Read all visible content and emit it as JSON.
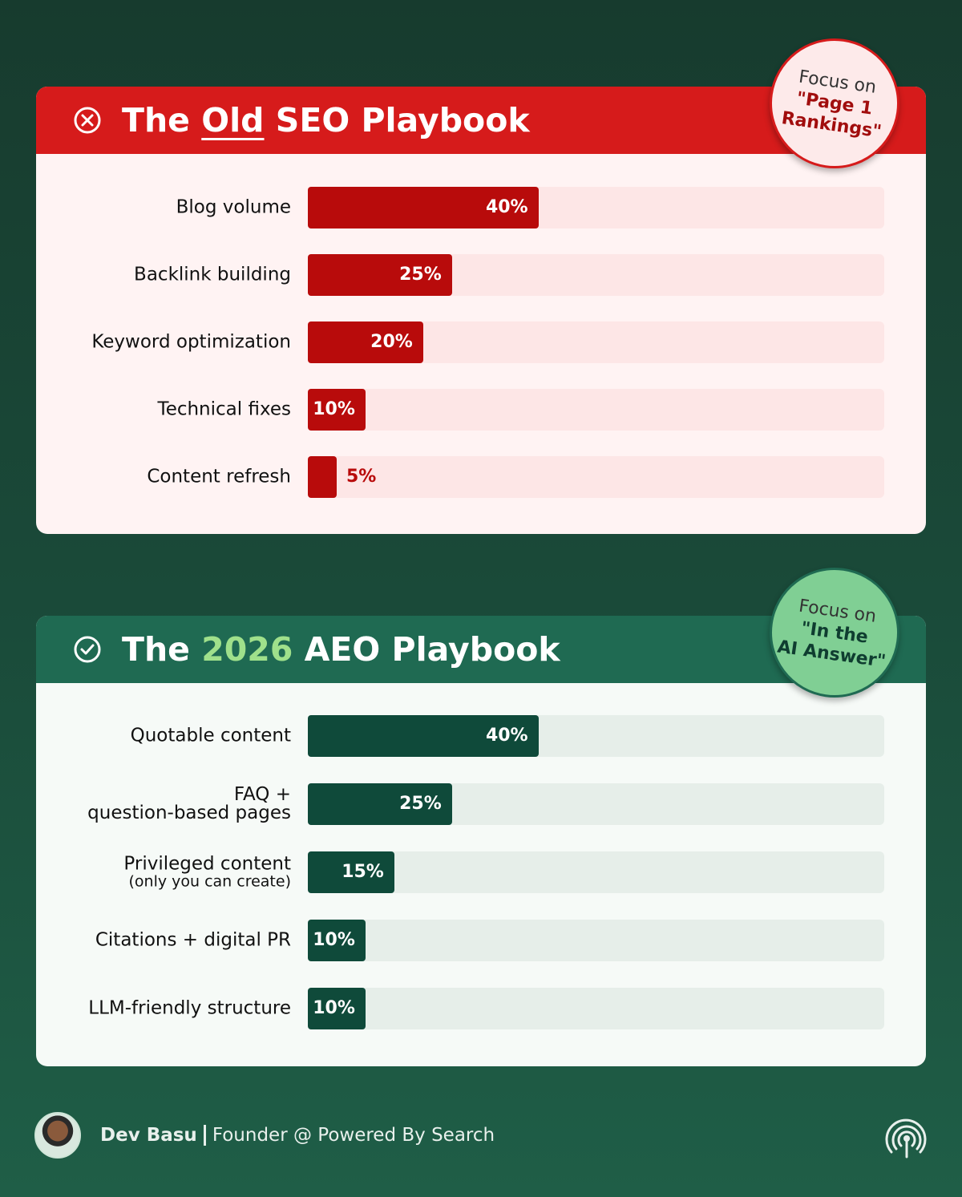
{
  "chart_data": [
    {
      "type": "bar",
      "orientation": "horizontal",
      "title": [
        "The ",
        "Old",
        " SEO Playbook"
      ],
      "badge": [
        "Focus on",
        "\"Page 1",
        "Rankings\""
      ],
      "categories": [
        "Blog volume",
        "Backlink building",
        "Keyword optimization",
        "Technical fixes",
        "Content refresh"
      ],
      "category_notes": [
        null,
        null,
        null,
        null,
        null
      ],
      "values": [
        40,
        25,
        20,
        10,
        5
      ],
      "value_labels": [
        "40%",
        "25%",
        "20%",
        "10%",
        "5%"
      ],
      "color": "#b80b0b",
      "xlim": [
        0,
        100
      ]
    },
    {
      "type": "bar",
      "orientation": "horizontal",
      "title": [
        "The ",
        "2026",
        " AEO Playbook"
      ],
      "badge": [
        "Focus on",
        "\"In the",
        "AI Answer\""
      ],
      "categories": [
        "Quotable content",
        "FAQ +\nquestion-based pages",
        "Privileged content",
        "Citations + digital PR",
        "LLM-friendly structure"
      ],
      "category_notes": [
        null,
        null,
        "(only you can create)",
        null,
        null
      ],
      "values": [
        40,
        25,
        15,
        10,
        10
      ],
      "value_labels": [
        "40%",
        "25%",
        "15%",
        "10%",
        "10%"
      ],
      "color": "#0f4a3a",
      "xlim": [
        0,
        100
      ]
    }
  ],
  "footer": {
    "name": "Dev Basu",
    "role": "Founder @ Powered By Search"
  }
}
